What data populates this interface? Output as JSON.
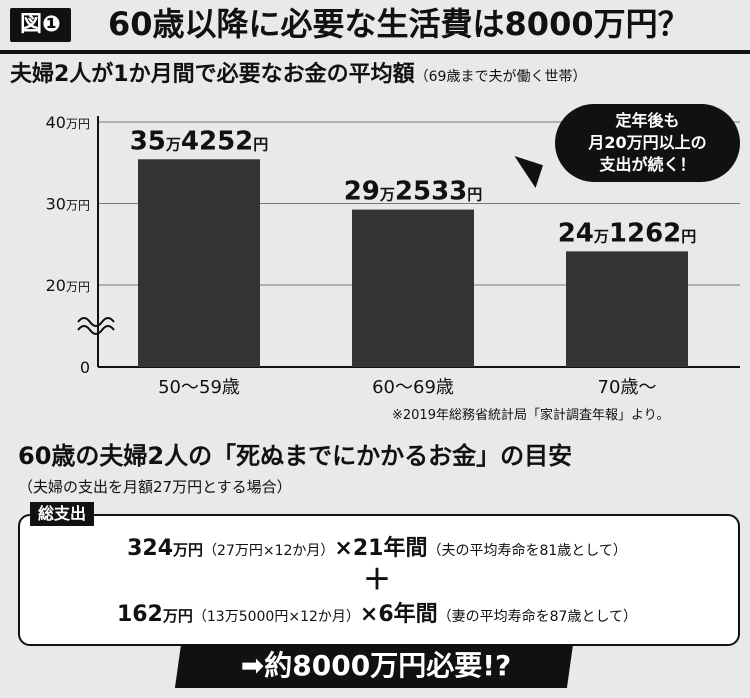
{
  "header": {
    "figure_badge": "図❶",
    "title": "60歳以降に必要な生活費は8000万円？"
  },
  "subtitle": {
    "main": "夫婦2人が1か月間で必要なお金の平均額",
    "note": "（69歳まで夫が働く世帯）"
  },
  "chart_data": {
    "type": "bar",
    "categories": [
      "50〜59歳",
      "60〜69歳",
      "70歳〜"
    ],
    "values": [
      354252,
      292533,
      241262
    ],
    "value_labels": [
      {
        "man": "35",
        "man_unit": "万",
        "rest": "4252",
        "yen": "円"
      },
      {
        "man": "29",
        "man_unit": "万",
        "rest": "2533",
        "yen": "円"
      },
      {
        "man": "24",
        "man_unit": "万",
        "rest": "1262",
        "yen": "円"
      }
    ],
    "yticks": [
      {
        "value": 400000,
        "num": "40",
        "unit": "万円"
      },
      {
        "value": 300000,
        "num": "30",
        "unit": "万円"
      },
      {
        "value": 200000,
        "num": "20",
        "unit": "万円"
      },
      {
        "value": 0,
        "num": "0",
        "unit": ""
      }
    ],
    "axis_break": true,
    "ylim": [
      0,
      400000
    ],
    "bar_color": "#333333"
  },
  "bubble": {
    "line1": "定年後も",
    "line2": "月20万円以上の",
    "line3": "支出が続く！"
  },
  "source": "※2019年総務省統計局「家計調査年報」より。",
  "section2": {
    "title": "60歳の夫婦2人の「死ぬまでにかかるお金」の目安",
    "note": "（夫婦の支出を月額27万円とする場合）",
    "box_label": "総支出",
    "line1": {
      "amount": "324",
      "amount_unit": "万円",
      "calc": "（27万円×12か月）",
      "times": "×21年間",
      "reason": "（夫の平均寿命を81歳として）"
    },
    "plus": "＋",
    "line2": {
      "amount": "162",
      "amount_unit": "万円",
      "calc": "（13万5000円×12か月）",
      "times": "×6年間",
      "reason": "（妻の平均寿命を87歳として）"
    },
    "result": "➡約8000万円必要!?"
  }
}
